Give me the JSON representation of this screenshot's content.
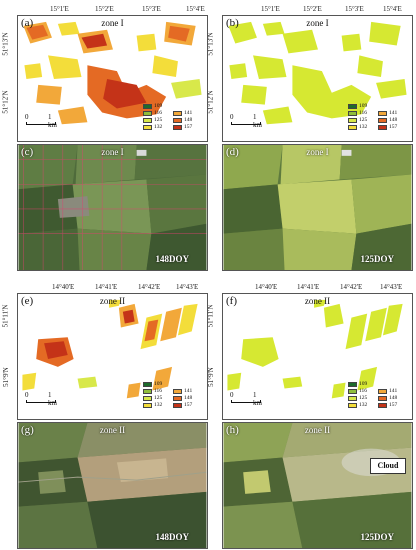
{
  "colors": {
    "doy_109": "#1e6b2b",
    "doy_116": "#8fbe3c",
    "doy_125": "#d8e84a",
    "doy_132": "#f3dd3a",
    "doy_141": "#f2a83a",
    "doy_148": "#e46a24",
    "doy_157": "#c43318",
    "binary_fill": "#d6e832"
  },
  "legend": {
    "entries": [
      "109",
      "116",
      "125",
      "132",
      "141",
      "148",
      "157"
    ]
  },
  "scale_bar": {
    "start": "0",
    "end": "1 km"
  },
  "zone1": {
    "zone_label": "zone I",
    "lon_ticks": [
      "15°1'E",
      "15°2'E",
      "15°3'E",
      "15°4'E"
    ],
    "lat_ticks": [
      "51°13'N",
      "51°12'N"
    ]
  },
  "zone2": {
    "zone_label": "zone II",
    "lon_ticks": [
      "14°40'E",
      "14°41'E",
      "14°42'E",
      "14°43'E"
    ],
    "lat_ticks": [
      "51°11'N",
      "51°9'N"
    ]
  },
  "panels": {
    "a": {
      "label": "(a)"
    },
    "b": {
      "label": "(b)"
    },
    "c": {
      "label": "(c)",
      "doy": "148DOY"
    },
    "d": {
      "label": "(d)",
      "doy": "125DOY"
    },
    "e": {
      "label": "(e)"
    },
    "f": {
      "label": "(f)"
    },
    "g": {
      "label": "(g)",
      "doy": "148DOY"
    },
    "h": {
      "label": "(h)",
      "doy": "125DOY",
      "annotation": "Cloud"
    }
  }
}
